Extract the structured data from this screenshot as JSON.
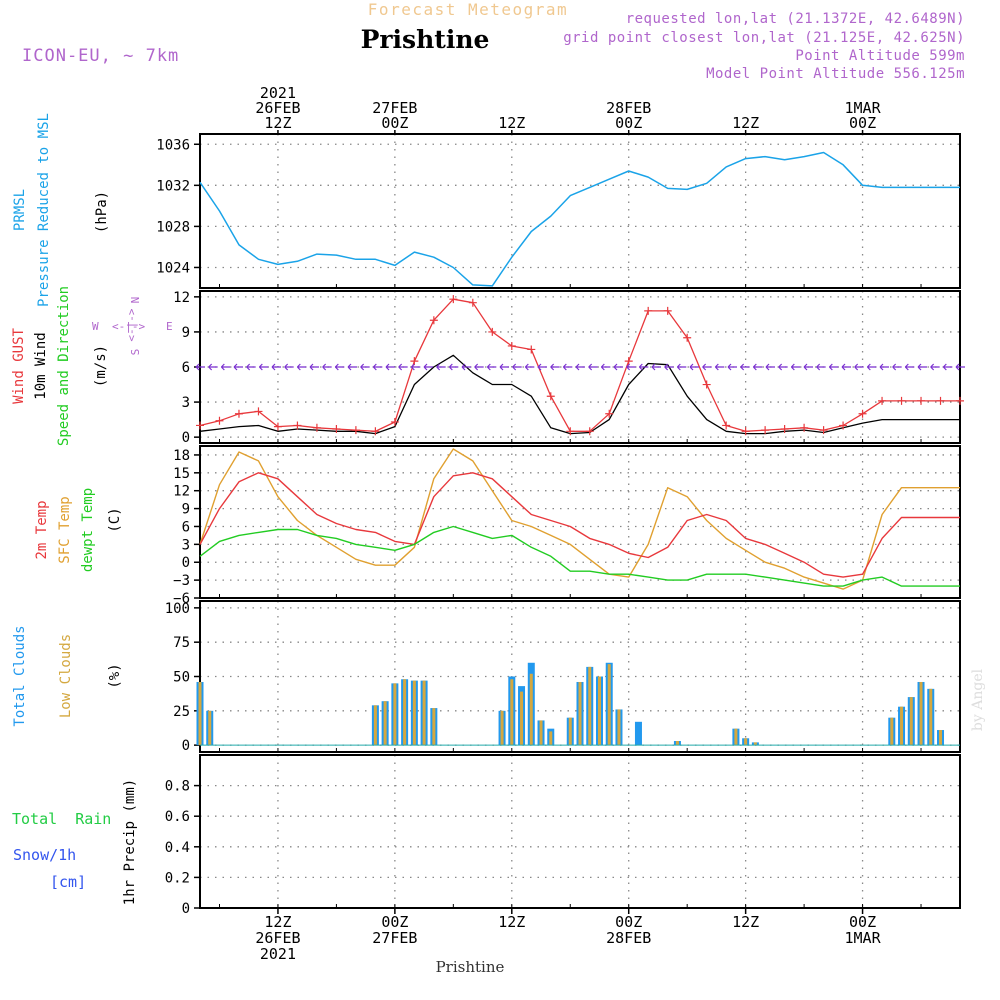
{
  "header": {
    "subtitle": "Forecast Meteogram",
    "title": "Prishtine",
    "model": "ICON-EU, ~ 7km",
    "requested": "requested lon,lat (21.1372E, 42.6489N)",
    "grid_point": "grid point closest lon,lat (21.125E, 42.625N)",
    "point_alt": "Point Altitude 599m",
    "model_alt": "Model Point Altitude 556.125m"
  },
  "time_axis": {
    "ticks": [
      {
        "h": 12,
        "top": [
          "2021",
          "26FEB",
          "12Z"
        ],
        "bottom": [
          "12Z",
          "26FEB",
          "2021"
        ]
      },
      {
        "h": 24,
        "top": [
          "27FEB",
          "00Z"
        ],
        "bottom": [
          "00Z",
          "27FEB"
        ]
      },
      {
        "h": 36,
        "top": [
          "12Z"
        ],
        "bottom": [
          "12Z"
        ]
      },
      {
        "h": 48,
        "top": [
          "28FEB",
          "00Z"
        ],
        "bottom": [
          "00Z",
          "28FEB"
        ]
      },
      {
        "h": 60,
        "top": [
          "12Z"
        ],
        "bottom": [
          "12Z"
        ]
      },
      {
        "h": 72,
        "top": [
          "1MAR",
          "00Z"
        ],
        "bottom": [
          "00Z",
          "1MAR"
        ]
      }
    ],
    "footer": "Prishtine",
    "watermark": "by Angel"
  },
  "panels": {
    "pressure": {
      "labels": [
        "PRMSL",
        "Pressure Reduced to MSL"
      ],
      "unit": "(hPa)",
      "ticks": [
        "1024",
        "1028",
        "1032",
        "1036"
      ]
    },
    "wind": {
      "labels": [
        "Wind GUST",
        "10m Wind",
        "Speed and Direction"
      ],
      "unit": "(m/s)",
      "ticks": [
        "0",
        "3",
        "6",
        "9",
        "12"
      ],
      "compass": {
        "n": "N",
        "s": "S",
        "w": "W",
        "e": "E",
        "arrows": "<-|->"
      }
    },
    "temp": {
      "labels": [
        "2m Temp",
        "SFC Temp",
        "dewpt Temp"
      ],
      "unit": "(C)",
      "ticks": [
        "−6",
        "−3",
        "0",
        "3",
        "6",
        "9",
        "12",
        "15",
        "18"
      ]
    },
    "clouds": {
      "labels": [
        "Total Clouds",
        "Low Clouds"
      ],
      "unit": "(%)",
      "ticks": [
        "0",
        "25",
        "50",
        "75",
        "100"
      ]
    },
    "precip": {
      "labels": [
        "Total  Rain",
        "Snow/1h",
        "[cm]"
      ],
      "unit": "1hr Precip (mm)",
      "ticks": [
        "0",
        "0.2",
        "0.4",
        "0.6",
        "0.8"
      ]
    }
  },
  "colors": {
    "pressure": "#1aa3e8",
    "gust": "#e8383c",
    "wind": "#000000",
    "temp2m": "#e8383c",
    "sfc": "#e0a030",
    "dewpt": "#22cc22",
    "total_cloud": "#2299ee",
    "low_cloud": "#d4a840",
    "rain": "#22cc44",
    "snow": "#3355ee",
    "header": "#b066cc",
    "subtitle": "#f0c890"
  },
  "chart_data": {
    "type": "line",
    "x_unit": "hours from 26FEB 2021 00Z",
    "x_range": [
      4,
      82
    ],
    "pressure": {
      "ylim": [
        1022,
        1037
      ],
      "x": [
        4,
        6,
        8,
        10,
        12,
        14,
        16,
        18,
        20,
        22,
        24,
        26,
        28,
        30,
        32,
        34,
        36,
        38,
        40,
        42,
        44,
        46,
        48,
        50,
        52,
        54,
        56,
        58,
        60,
        62,
        64,
        66,
        68,
        70,
        72,
        74,
        76,
        78,
        80,
        82
      ],
      "y": [
        1032.3,
        1029.5,
        1026.2,
        1024.8,
        1024.3,
        1024.6,
        1025.3,
        1025.2,
        1024.8,
        1024.8,
        1024.2,
        1025.5,
        1025.0,
        1024.0,
        1022.3,
        1022.2,
        1025.0,
        1027.5,
        1029.0,
        1031.0,
        1031.8,
        1032.6,
        1033.4,
        1032.8,
        1031.7,
        1031.6,
        1032.2,
        1033.8,
        1034.6,
        1034.8,
        1034.5,
        1034.8,
        1035.2,
        1034.0,
        1032.0,
        1031.8,
        1031.8,
        1031.8,
        1031.8,
        1031.8
      ]
    },
    "wind": {
      "ylim": [
        -0.5,
        12.5
      ],
      "x": [
        4,
        6,
        8,
        10,
        12,
        14,
        16,
        18,
        20,
        22,
        24,
        26,
        28,
        30,
        32,
        34,
        36,
        38,
        40,
        42,
        44,
        46,
        48,
        50,
        52,
        54,
        56,
        58,
        60,
        62,
        64,
        66,
        68,
        70,
        72,
        74,
        76,
        78,
        80,
        82
      ],
      "gust": [
        1.0,
        1.4,
        2.0,
        2.2,
        0.9,
        1.0,
        0.8,
        0.7,
        0.6,
        0.5,
        1.3,
        6.5,
        10.0,
        11.8,
        11.5,
        9.0,
        7.8,
        7.5,
        3.5,
        0.5,
        0.5,
        2.0,
        6.5,
        10.8,
        10.8,
        8.5,
        4.5,
        1.0,
        0.5,
        0.6,
        0.7,
        0.8,
        0.6,
        1.0,
        2.0,
        3.1,
        3.1,
        3.1,
        3.1,
        3.1
      ],
      "mean": [
        0.5,
        0.7,
        0.9,
        1.0,
        0.5,
        0.7,
        0.6,
        0.5,
        0.5,
        0.3,
        0.9,
        4.5,
        6.0,
        7.0,
        5.5,
        4.5,
        4.5,
        3.5,
        0.8,
        0.3,
        0.4,
        1.5,
        4.5,
        6.3,
        6.2,
        3.5,
        1.5,
        0.5,
        0.3,
        0.3,
        0.5,
        0.6,
        0.4,
        0.8,
        1.2,
        1.5,
        1.5,
        1.5,
        1.5,
        1.5
      ]
    },
    "temperature": {
      "ylim": [
        -6,
        19.5
      ],
      "x": [
        4,
        6,
        8,
        10,
        12,
        14,
        16,
        18,
        20,
        22,
        24,
        26,
        28,
        30,
        32,
        34,
        36,
        38,
        40,
        42,
        44,
        46,
        48,
        50,
        52,
        54,
        56,
        58,
        60,
        62,
        64,
        66,
        68,
        70,
        72,
        74,
        76,
        78,
        80,
        82
      ],
      "t2m": [
        3,
        9,
        13.5,
        15,
        14,
        11,
        8,
        6.5,
        5.5,
        5,
        3.5,
        3,
        11,
        14.5,
        15,
        14,
        11,
        8,
        7,
        6,
        4,
        3,
        1.5,
        0.8,
        2.5,
        7,
        8,
        7,
        4,
        3,
        1.5,
        0,
        -2,
        -2.5,
        -2,
        4,
        7.5,
        7.5,
        7.5,
        7.5
      ],
      "sfc": [
        3,
        13,
        18.5,
        17,
        11,
        7,
        4.5,
        2.5,
        0.5,
        -0.5,
        -0.5,
        2.5,
        14,
        19,
        17,
        12,
        7,
        6,
        4.5,
        3,
        0.5,
        -2,
        -2.5,
        3,
        12.5,
        11,
        7,
        4,
        2,
        0,
        -1,
        -2.5,
        -3.5,
        -4.5,
        -3,
        8,
        12.5,
        12.5,
        12.5,
        12.5
      ],
      "dewpt": [
        1,
        3.5,
        4.5,
        5,
        5.5,
        5.5,
        4.5,
        4,
        3,
        2.5,
        2,
        3,
        5,
        6,
        5,
        4,
        4.5,
        2.5,
        1,
        -1.5,
        -1.5,
        -2,
        -2,
        -2.5,
        -3,
        -3,
        -2,
        -2,
        -2,
        -2.5,
        -3,
        -3.5,
        -4,
        -4,
        -3,
        -2.5,
        -4,
        -4,
        -4,
        -4
      ]
    },
    "clouds": {
      "ylim": [
        -5,
        105
      ],
      "bars": [
        {
          "h": 4,
          "total": 46,
          "low": 46
        },
        {
          "h": 5,
          "total": 25,
          "low": 25
        },
        {
          "h": 22,
          "total": 29,
          "low": 29
        },
        {
          "h": 23,
          "total": 32,
          "low": 32
        },
        {
          "h": 24,
          "total": 45,
          "low": 45
        },
        {
          "h": 25,
          "total": 48,
          "low": 48
        },
        {
          "h": 26,
          "total": 47,
          "low": 47
        },
        {
          "h": 27,
          "total": 47,
          "low": 47
        },
        {
          "h": 28,
          "total": 27,
          "low": 27
        },
        {
          "h": 35,
          "total": 25,
          "low": 25
        },
        {
          "h": 36,
          "total": 50,
          "low": 48
        },
        {
          "h": 37,
          "total": 43,
          "low": 39
        },
        {
          "h": 38,
          "total": 60,
          "low": 52
        },
        {
          "h": 39,
          "total": 18,
          "low": 18
        },
        {
          "h": 40,
          "total": 12,
          "low": 10
        },
        {
          "h": 42,
          "total": 20,
          "low": 20
        },
        {
          "h": 43,
          "total": 46,
          "low": 46
        },
        {
          "h": 44,
          "total": 57,
          "low": 57
        },
        {
          "h": 45,
          "total": 50,
          "low": 50
        },
        {
          "h": 46,
          "total": 60,
          "low": 59
        },
        {
          "h": 47,
          "total": 26,
          "low": 26
        },
        {
          "h": 49,
          "total": 17,
          "low": 0
        },
        {
          "h": 53,
          "total": 3,
          "low": 3
        },
        {
          "h": 59,
          "total": 12,
          "low": 12
        },
        {
          "h": 60,
          "total": 5,
          "low": 5
        },
        {
          "h": 61,
          "total": 2,
          "low": 2
        },
        {
          "h": 75,
          "total": 20,
          "low": 20
        },
        {
          "h": 76,
          "total": 28,
          "low": 28
        },
        {
          "h": 77,
          "total": 35,
          "low": 35
        },
        {
          "h": 78,
          "total": 46,
          "low": 46
        },
        {
          "h": 79,
          "total": 41,
          "low": 41
        },
        {
          "h": 80,
          "total": 11,
          "low": 11
        }
      ]
    },
    "precip": {
      "ylim": [
        0,
        1.0
      ],
      "rain": [],
      "snow": []
    }
  }
}
